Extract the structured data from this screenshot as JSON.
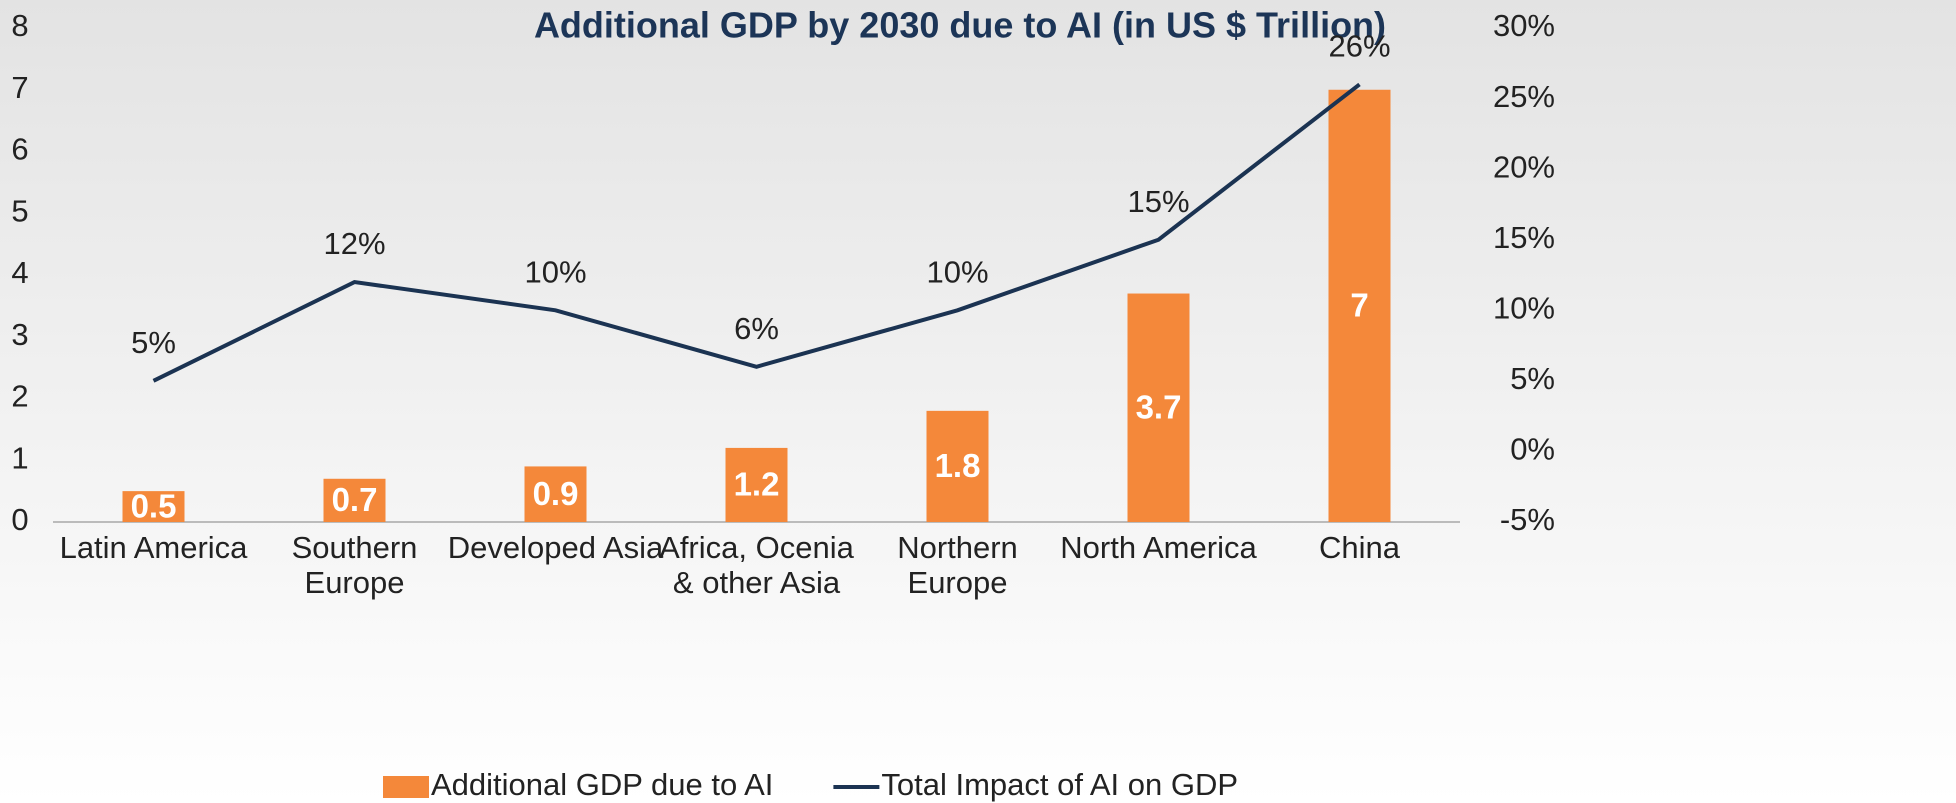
{
  "chart_data": {
    "type": "bar_line",
    "title": "Additional GDP by 2030 due to AI (in US $ Trillion)",
    "categories": [
      "Latin America",
      "Southern\nEurope",
      "Developed Asia",
      "Africa, Ocenia\n& other Asia",
      "Northern\nEurope",
      "North America",
      "China"
    ],
    "series": [
      {
        "name": "Additional GDP due to AI",
        "type": "bar",
        "color": "#f4883a",
        "values": [
          0.5,
          0.7,
          0.9,
          1.2,
          1.8,
          3.7,
          7
        ]
      },
      {
        "name": "Total Impact of AI on GDP",
        "type": "line",
        "axis": "y2",
        "color": "#1b3352",
        "values": [
          5,
          12,
          10,
          6,
          10,
          15,
          26
        ],
        "value_labels": [
          "5%",
          "12%",
          "10%",
          "6%",
          "10%",
          "15%",
          "26%"
        ]
      }
    ],
    "ylim": [
      0,
      8
    ],
    "yticks": [
      0,
      1,
      2,
      3,
      4,
      5,
      6,
      7,
      8
    ],
    "y2lim": [
      -5,
      30
    ],
    "y2ticks": [
      {
        "value": -5,
        "label": "-5%"
      },
      {
        "value": 0,
        "label": "0%"
      },
      {
        "value": 5,
        "label": "5%"
      },
      {
        "value": 10,
        "label": "10%"
      },
      {
        "value": 15,
        "label": "15%"
      },
      {
        "value": 20,
        "label": "20%"
      },
      {
        "value": 25,
        "label": "25%"
      },
      {
        "value": 30,
        "label": "30%"
      }
    ],
    "legend": "bottom",
    "grid": false
  }
}
